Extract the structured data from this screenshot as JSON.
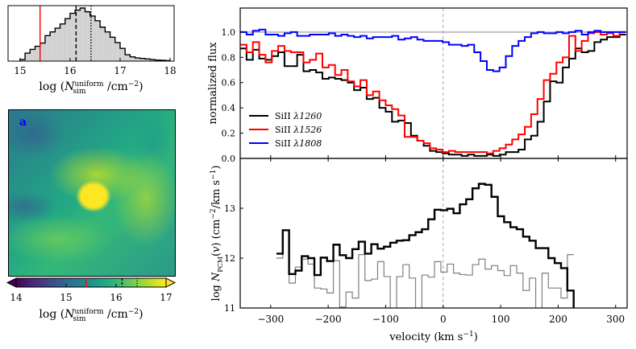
{
  "chart_data": [
    {
      "type": "bar",
      "panel": "histogram",
      "title": "",
      "xlabel": "log (N_sim^uniform / cm^-2)",
      "xlabel_parts": {
        "pre": "log (",
        "N": "N",
        "sup": "uniform",
        "sub": "sim",
        "post": "/cm",
        "exp": "−2",
        ")": ")"
      },
      "ylabel": "",
      "xlim": [
        14.76,
        18.08
      ],
      "xticks": [
        15,
        16,
        17,
        18
      ],
      "bin_edges": [
        15.0,
        15.1,
        15.2,
        15.3,
        15.4,
        15.5,
        15.6,
        15.7,
        15.8,
        15.9,
        16.0,
        16.1,
        16.2,
        16.3,
        16.4,
        16.5,
        16.6,
        16.7,
        16.8,
        16.9,
        17.0,
        17.1,
        17.2,
        17.3,
        17.4,
        17.5,
        17.6,
        17.7,
        17.8,
        17.9,
        18.0
      ],
      "values": [
        0.03,
        0.15,
        0.22,
        0.28,
        0.34,
        0.48,
        0.55,
        0.62,
        0.7,
        0.8,
        0.9,
        0.96,
        1.0,
        0.93,
        0.85,
        0.76,
        0.64,
        0.55,
        0.45,
        0.35,
        0.24,
        0.12,
        0.08,
        0.06,
        0.05,
        0.04,
        0.03,
        0.02,
        0.015,
        0.01
      ],
      "markers": [
        {
          "name": "red-line",
          "value": 15.4,
          "color": "#ff0000",
          "style": "solid"
        },
        {
          "name": "median-dashed",
          "value": 16.12,
          "color": "#000000",
          "style": "dashed"
        },
        {
          "name": "mean-dotted",
          "value": 16.42,
          "color": "#000000",
          "style": "dotted"
        }
      ],
      "colors": {
        "fill": "#d3d3d3",
        "edge": "#000000"
      }
    },
    {
      "type": "heatmap",
      "panel": "map",
      "panel_label": "a",
      "colormap": "viridis",
      "colorbar": {
        "range": [
          14,
          17
        ],
        "ticks": [
          14,
          15,
          16,
          17
        ],
        "extend": "both",
        "markers": [
          {
            "value": 15.4,
            "color": "#ff0000",
            "style": "solid"
          },
          {
            "value": 16.12,
            "color": "#000000",
            "style": "dashed"
          },
          {
            "value": 16.42,
            "color": "#000000",
            "style": "dotted"
          }
        ],
        "label": "log (N_sim^uniform / cm^-2)"
      }
    },
    {
      "type": "line",
      "panel": "flux",
      "step": true,
      "ylabel": "normalized flux",
      "xlim": [
        -353,
        320
      ],
      "ylim": [
        0.0,
        1.19
      ],
      "yticks": [
        0.0,
        0.2,
        0.4,
        0.6,
        0.8,
        1.0
      ],
      "ytick_labels": [
        "0.0",
        "0.2",
        "0.4",
        "0.6",
        "0.8",
        "1.0"
      ],
      "xticks": [
        -300,
        -200,
        -100,
        0,
        100,
        200,
        300
      ],
      "continuum": 1.0,
      "zero_line": 0,
      "bin_start": -353,
      "bin_width": 11,
      "series": [
        {
          "name": "SiII λ1260",
          "label_pre": "SiII ",
          "lambda": "λ1260",
          "color": "#000000",
          "values": [
            0.87,
            0.78,
            0.86,
            0.79,
            0.78,
            0.81,
            0.84,
            0.73,
            0.73,
            0.82,
            0.69,
            0.7,
            0.68,
            0.63,
            0.64,
            0.63,
            0.62,
            0.6,
            0.54,
            0.56,
            0.47,
            0.48,
            0.4,
            0.37,
            0.29,
            0.3,
            0.28,
            0.18,
            0.14,
            0.1,
            0.06,
            0.05,
            0.04,
            0.03,
            0.03,
            0.02,
            0.03,
            0.02,
            0.02,
            0.03,
            0.02,
            0.03,
            0.05,
            0.05,
            0.07,
            0.15,
            0.18,
            0.29,
            0.45,
            0.61,
            0.6,
            0.72,
            0.79,
            0.87,
            0.84,
            0.85,
            0.92,
            0.94,
            0.96,
            0.96,
            0.98
          ]
        },
        {
          "name": "SiII λ1526",
          "label_pre": "SiII ",
          "lambda": "λ1526",
          "color": "#ff0000",
          "values": [
            0.9,
            0.84,
            0.92,
            0.82,
            0.76,
            0.85,
            0.89,
            0.85,
            0.84,
            0.84,
            0.76,
            0.78,
            0.83,
            0.72,
            0.74,
            0.66,
            0.7,
            0.61,
            0.57,
            0.62,
            0.5,
            0.53,
            0.46,
            0.42,
            0.39,
            0.34,
            0.17,
            0.17,
            0.14,
            0.12,
            0.08,
            0.07,
            0.05,
            0.06,
            0.05,
            0.05,
            0.05,
            0.05,
            0.05,
            0.04,
            0.06,
            0.08,
            0.11,
            0.15,
            0.19,
            0.25,
            0.35,
            0.47,
            0.62,
            0.67,
            0.76,
            0.8,
            0.97,
            0.85,
            0.93,
            0.99,
            1.0,
            0.98,
            0.99,
            0.97,
            1.0
          ]
        },
        {
          "name": "SiII λ1808",
          "label_pre": "SiII ",
          "lambda": "λ1808",
          "color": "#0000ff",
          "values": [
            1.0,
            0.98,
            1.01,
            1.02,
            0.98,
            0.98,
            0.97,
            0.99,
            1.0,
            0.97,
            0.97,
            0.98,
            0.98,
            0.98,
            0.99,
            0.97,
            0.98,
            0.97,
            0.96,
            0.97,
            0.95,
            0.96,
            0.96,
            0.96,
            0.97,
            0.94,
            0.95,
            0.96,
            0.94,
            0.93,
            0.93,
            0.93,
            0.92,
            0.9,
            0.9,
            0.89,
            0.9,
            0.84,
            0.77,
            0.7,
            0.69,
            0.72,
            0.81,
            0.89,
            0.93,
            0.96,
            0.99,
            1.0,
            0.99,
            0.99,
            1.0,
            0.99,
            1.0,
            1.01,
            0.98,
            1.0,
            1.01,
            1.0,
            1.0,
            1.0,
            1.0
          ]
        }
      ],
      "legend": "lower-left",
      "colors": {
        "continuum": "#bfbfbf",
        "zero": "#aaaaaa"
      }
    },
    {
      "type": "line",
      "panel": "column-density",
      "step": true,
      "ylabel": "log N_PCM(v) (cm^-2/km s^-1)",
      "ylabel_parts": {
        "pre": "log ",
        "N": "N",
        "sub": "PCM",
        "mid": "(v) (cm",
        "exp1": "−2",
        "post": "/km s",
        "exp2": "−1",
        ")": ")"
      },
      "xlabel": "velocity (km s^-1)",
      "xlabel_parts": {
        "pre": "velocity (km s",
        "exp": "−1",
        ")": ")"
      },
      "xlim": [
        -353,
        320
      ],
      "ylim": [
        11,
        14.0
      ],
      "yticks": [
        11,
        12,
        13
      ],
      "xticks": [
        -300,
        -200,
        -100,
        0,
        100,
        200,
        300
      ],
      "xtick_labels": [
        "−300",
        "−200",
        "−100",
        "0",
        "100",
        "200",
        "300"
      ],
      "bin_start": -290,
      "bin_width": 11,
      "series": [
        {
          "name": "black-thick",
          "color": "#000000",
          "values": [
            12.09,
            12.56,
            11.68,
            11.75,
            12.04,
            12.0,
            11.66,
            12.01,
            11.94,
            12.27,
            12.06,
            12.0,
            12.18,
            12.33,
            12.09,
            12.28,
            12.19,
            12.23,
            12.31,
            12.35,
            12.36,
            12.46,
            12.52,
            12.58,
            12.78,
            12.97,
            12.96,
            12.99,
            12.9,
            13.08,
            13.18,
            13.4,
            13.49,
            13.47,
            13.23,
            12.84,
            12.72,
            12.62,
            12.58,
            12.43,
            12.35,
            12.2,
            12.2,
            12.0,
            11.9,
            11.8,
            11.35,
            10.9
          ]
        },
        {
          "name": "gray-thin",
          "color": "#7f7f7f",
          "values": [
            12.0,
            12.56,
            11.5,
            11.82,
            11.98,
            11.88,
            11.4,
            11.38,
            11.3,
            11.95,
            11.02,
            11.32,
            11.2,
            12.07,
            11.55,
            11.58,
            11.93,
            11.63,
            10.9,
            11.63,
            11.87,
            11.6,
            10.9,
            11.66,
            11.62,
            11.93,
            11.72,
            11.88,
            11.7,
            11.67,
            11.66,
            11.87,
            11.98,
            11.78,
            11.85,
            11.75,
            11.65,
            11.85,
            11.7,
            11.35,
            11.6,
            10.9,
            11.7,
            11.4,
            11.4,
            11.2,
            12.07
          ]
        }
      ],
      "zero_line": 0
    }
  ]
}
